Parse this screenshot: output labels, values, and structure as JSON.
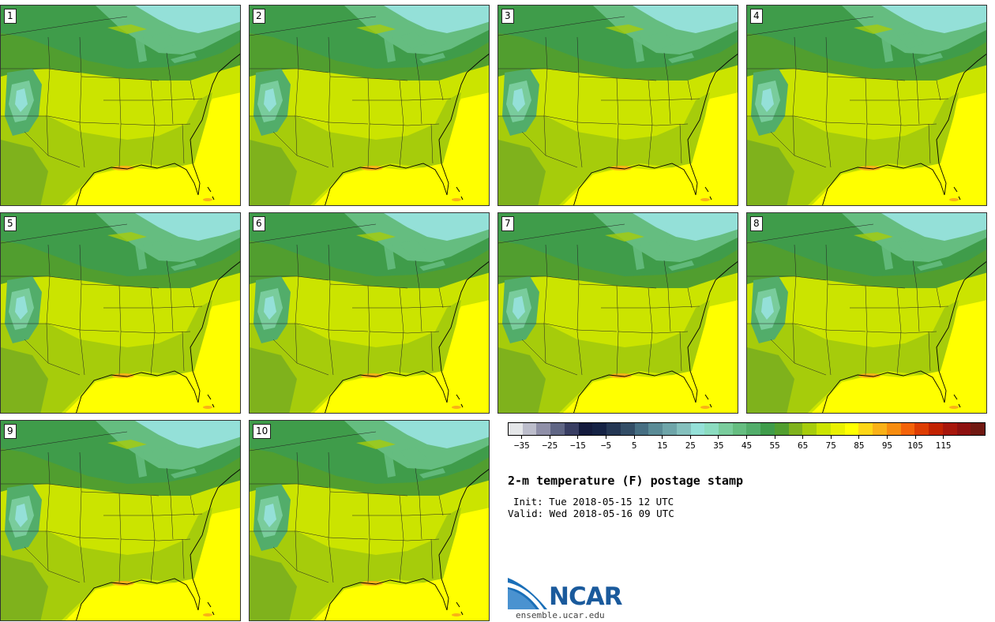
{
  "panels": [
    {
      "label": "1"
    },
    {
      "label": "2"
    },
    {
      "label": "3"
    },
    {
      "label": "4"
    },
    {
      "label": "5"
    },
    {
      "label": "6"
    },
    {
      "label": "7"
    },
    {
      "label": "8"
    },
    {
      "label": "9"
    },
    {
      "label": "10"
    }
  ],
  "colorbar": {
    "colors": [
      "#e4e6e8",
      "#bcbdcb",
      "#8f8fa8",
      "#5f6584",
      "#383d62",
      "#131a3c",
      "#152244",
      "#243653",
      "#324d66",
      "#466e82",
      "#5a8b96",
      "#6ea5a9",
      "#84c0bd",
      "#94e0d8",
      "#8bdcc0",
      "#79cc9c",
      "#65bd80",
      "#52ad6a",
      "#3f9c4a",
      "#519e2f",
      "#7fb21c",
      "#a6cc0b",
      "#cbe400",
      "#e9f000",
      "#ffff00",
      "#fdd616",
      "#f9b117",
      "#f68c0f",
      "#f36208",
      "#dd3c02",
      "#c22201",
      "#a7160b",
      "#8d100f",
      "#701811"
    ],
    "tick_labels": [
      "−35",
      "−25",
      "−15",
      "−5",
      "5",
      "15",
      "25",
      "35",
      "45",
      "55",
      "65",
      "75",
      "85",
      "95",
      "105",
      "115"
    ]
  },
  "title": "2-m temperature (F) postage stamp",
  "init": "Init: Tue 2018-05-15 12 UTC",
  "valid": "Valid: Wed 2018-05-16 09 UTC",
  "logo": {
    "text": "NCAR",
    "url": "ensemble.ucar.edu"
  }
}
